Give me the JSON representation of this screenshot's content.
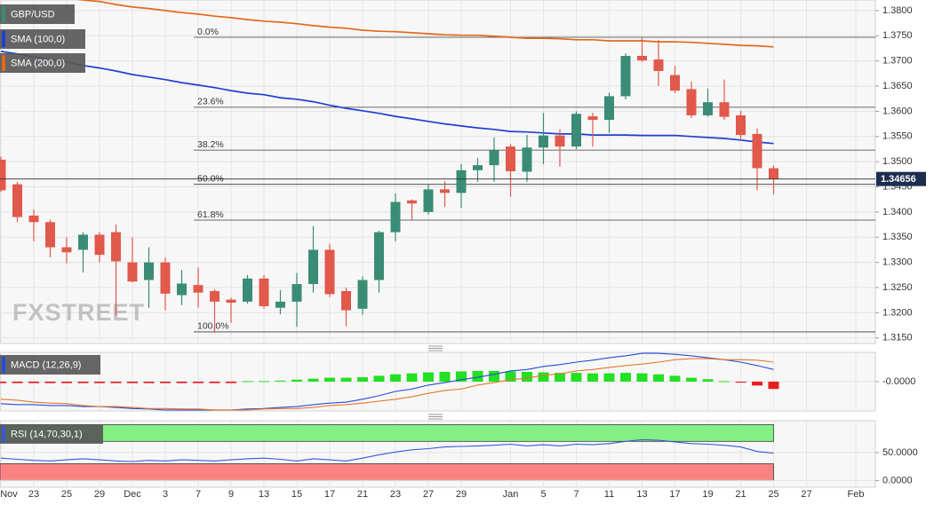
{
  "chart_data": [
    {
      "type": "candlestick",
      "watermark": "FXSTREET",
      "categories": [
        "Nov",
        null,
        "23",
        null,
        "25",
        null,
        "29",
        null,
        "Dec",
        null,
        "3",
        null,
        "7",
        null,
        "9",
        null,
        "13",
        null,
        "15",
        null,
        "17",
        null,
        "21",
        null,
        "23",
        null,
        "27",
        null,
        "29",
        null,
        null,
        "Jan",
        null,
        "5",
        null,
        "7",
        null,
        "11",
        null,
        "13",
        null,
        "17",
        null,
        "19",
        null,
        "21",
        null,
        "25",
        null,
        "27",
        null,
        null,
        "Feb"
      ],
      "candles": {
        "name": "GBP/USD",
        "up_color": "#3b8c76",
        "down_color": "#e0594b",
        "open": [
          1.3504,
          1.3455,
          1.3393,
          1.338,
          1.333,
          1.3325,
          1.3355,
          1.336,
          1.33,
          1.3265,
          1.33,
          1.3235,
          1.3255,
          1.3243,
          1.3226,
          1.3222,
          1.3268,
          1.321,
          1.3222,
          1.3257,
          1.3325,
          1.3243,
          1.3208,
          1.3265,
          1.336,
          1.3423,
          1.34,
          1.3445,
          1.3438,
          1.3483,
          1.3493,
          1.353,
          1.348,
          1.3528,
          1.3552,
          1.353,
          1.359,
          1.3583,
          1.363,
          1.371,
          1.3703,
          1.3672,
          1.3644,
          1.3592,
          1.3618,
          1.3592,
          1.3555,
          1.3487,
          null,
          null,
          null,
          null,
          null
        ],
        "high": [
          1.351,
          1.346,
          1.3405,
          1.3385,
          1.335,
          1.336,
          1.336,
          1.3375,
          1.335,
          1.333,
          1.331,
          1.3285,
          1.329,
          1.3247,
          1.323,
          1.3275,
          1.3275,
          1.3245,
          1.3279,
          1.3372,
          1.3337,
          1.325,
          1.3272,
          1.3363,
          1.3437,
          1.3425,
          1.3455,
          1.3461,
          1.3496,
          1.3507,
          1.3548,
          1.3535,
          1.3553,
          1.3597,
          1.3564,
          1.36,
          1.3597,
          1.3637,
          1.3715,
          1.3746,
          1.3742,
          1.369,
          1.3659,
          1.3645,
          1.3663,
          1.3601,
          1.3566,
          1.3492,
          null,
          null,
          null,
          null,
          null
        ],
        "low": [
          1.344,
          1.338,
          1.3342,
          1.331,
          1.3298,
          1.328,
          1.33,
          1.3195,
          1.326,
          1.321,
          1.3205,
          1.3215,
          1.321,
          1.316,
          1.318,
          1.3218,
          1.3208,
          1.3197,
          1.3172,
          1.324,
          1.3231,
          1.3173,
          1.3196,
          1.324,
          1.3342,
          1.3385,
          1.3395,
          1.341,
          1.3408,
          1.346,
          1.346,
          1.343,
          1.346,
          1.3495,
          1.349,
          1.3525,
          1.353,
          1.3557,
          1.3624,
          1.3698,
          1.365,
          1.3636,
          1.3587,
          1.3589,
          1.3583,
          1.3543,
          1.3443,
          1.3435,
          null,
          null,
          null,
          null,
          null
        ],
        "close": [
          1.3443,
          1.339,
          1.338,
          1.333,
          1.332,
          1.3355,
          1.3315,
          1.3302,
          1.3262,
          1.33,
          1.3238,
          1.3258,
          1.324,
          1.3222,
          1.322,
          1.3268,
          1.3213,
          1.3222,
          1.3257,
          1.3325,
          1.3237,
          1.3205,
          1.3265,
          1.336,
          1.342,
          1.3417,
          1.3445,
          1.3438,
          1.3483,
          1.3493,
          1.3522,
          1.3481,
          1.3528,
          1.3552,
          1.353,
          1.3595,
          1.3583,
          1.363,
          1.371,
          1.3701,
          1.368,
          1.3641,
          1.3592,
          1.3618,
          1.3589,
          1.3553,
          1.3487,
          1.34656,
          null,
          null,
          null,
          null,
          null
        ]
      },
      "series": [
        {
          "name": "SMA (100,0)",
          "color": "#1f3fd2",
          "values": [
            1.3719,
            1.3714,
            1.3708,
            1.3703,
            1.3698,
            1.3691,
            1.3686,
            1.368,
            1.3673,
            1.3668,
            1.3663,
            1.3657,
            1.3652,
            1.3647,
            1.3641,
            1.3636,
            1.3633,
            1.3627,
            1.3624,
            1.3619,
            1.3612,
            1.3606,
            1.3601,
            1.3596,
            1.359,
            1.3585,
            1.358,
            1.3575,
            1.3571,
            1.3567,
            1.3564,
            1.356,
            1.3559,
            1.3557,
            1.3555,
            1.3555,
            1.3553,
            1.3553,
            1.3553,
            1.3552,
            1.3552,
            1.3552,
            1.355,
            1.3548,
            1.3546,
            1.3543,
            1.3539,
            1.3536,
            null,
            null,
            null,
            null,
            null
          ]
        },
        {
          "name": "SMA (200,0)",
          "color": "#e2691d",
          "values": [
            1.3839,
            1.3835,
            1.3832,
            1.3828,
            1.3825,
            1.3821,
            1.3818,
            1.3812,
            1.3807,
            1.3804,
            1.38,
            1.3796,
            1.3793,
            1.3789,
            1.3786,
            1.3782,
            1.3779,
            1.3777,
            1.3774,
            1.377,
            1.3767,
            1.3765,
            1.3761,
            1.3759,
            1.3758,
            1.3756,
            1.3754,
            1.3752,
            1.3751,
            1.3751,
            1.3749,
            1.3747,
            1.3745,
            1.3745,
            1.3744,
            1.3742,
            1.3742,
            1.374,
            1.374,
            1.374,
            1.3738,
            1.3738,
            1.3737,
            1.3735,
            1.3733,
            1.3731,
            1.373,
            1.3728,
            null,
            null,
            null,
            null,
            null
          ]
        }
      ],
      "fibonacci": [
        {
          "label": "0.0%",
          "value": 1.3747
        },
        {
          "label": "23.6%",
          "value": 1.3608
        },
        {
          "label": "38.2%",
          "value": 1.3523
        },
        {
          "label": "50.0%",
          "value": 1.3455
        },
        {
          "label": "61.8%",
          "value": 1.3384
        },
        {
          "label": "100.0%",
          "value": 1.3162
        }
      ],
      "ylim": [
        1.3139,
        1.3821
      ],
      "yticks": [
        {
          "value": 1.315,
          "label": "1.3150"
        },
        {
          "value": 1.32,
          "label": "1.3200"
        },
        {
          "value": 1.325,
          "label": "1.3250"
        },
        {
          "value": 1.33,
          "label": "1.3300"
        },
        {
          "value": 1.335,
          "label": "1.3350"
        },
        {
          "value": 1.34,
          "label": "1.3400"
        },
        {
          "value": 1.345,
          "label": "1.3450"
        },
        {
          "value": 1.35,
          "label": "1.3500"
        },
        {
          "value": 1.355,
          "label": "1.3550"
        },
        {
          "value": 1.36,
          "label": "1.3600"
        },
        {
          "value": 1.365,
          "label": "1.3650"
        },
        {
          "value": 1.37,
          "label": "1.3700"
        },
        {
          "value": 1.375,
          "label": "1.3750"
        },
        {
          "value": 1.38,
          "label": "1.3800"
        }
      ],
      "grid": true
    },
    {
      "type": "macd",
      "title": "MACD (12,26,9)",
      "histogram": {
        "up_color": "#22e022",
        "down_color": "#e81c1c",
        "values": [
          -0.0003,
          -0.0003,
          -0.0003,
          -0.0003,
          -0.0003,
          -0.0003,
          -0.0003,
          -0.0003,
          -0.0003,
          -0.0003,
          -0.0003,
          -0.0003,
          -0.0003,
          -0.0003,
          -0.0003,
          0.0001,
          0.0001,
          0.0002,
          0.0004,
          0.0006,
          0.0008,
          0.0008,
          0.0009,
          0.0012,
          0.0015,
          0.0017,
          0.0019,
          0.002,
          0.0021,
          0.0022,
          0.0022,
          0.0021,
          0.002,
          0.0019,
          0.0018,
          0.0018,
          0.0017,
          0.0017,
          0.0018,
          0.0017,
          0.0015,
          0.0012,
          0.0008,
          0.0005,
          0.0001,
          -0.0002,
          -0.0008,
          -0.0015,
          null,
          null,
          null,
          null,
          null
        ]
      },
      "series": [
        {
          "color": "#2a4bd7",
          "values": [
            -0.0045,
            -0.0047,
            -0.0047,
            -0.0049,
            -0.0049,
            -0.0051,
            -0.0051,
            -0.0053,
            -0.0055,
            -0.0056,
            -0.0058,
            -0.0058,
            -0.0058,
            -0.0058,
            -0.0058,
            -0.0056,
            -0.0055,
            -0.0053,
            -0.0051,
            -0.0047,
            -0.0044,
            -0.0042,
            -0.0036,
            -0.0029,
            -0.002,
            -0.0015,
            -0.0007,
            -0.0002,
            0.0004,
            0.0009,
            0.0015,
            0.0022,
            0.0025,
            0.0031,
            0.0035,
            0.004,
            0.0044,
            0.0049,
            0.0053,
            0.0058,
            0.0058,
            0.0056,
            0.0053,
            0.0049,
            0.0045,
            0.004,
            0.0033,
            0.0025,
            null,
            null,
            null,
            null,
            null
          ]
        },
        {
          "color": "#e8762b",
          "values": [
            -0.0036,
            -0.0038,
            -0.0042,
            -0.0044,
            -0.0045,
            -0.0049,
            -0.0051,
            -0.0051,
            -0.0053,
            -0.0055,
            -0.0055,
            -0.0056,
            -0.0056,
            -0.0058,
            -0.0058,
            -0.0058,
            -0.0056,
            -0.0055,
            -0.0055,
            -0.0053,
            -0.0049,
            -0.0047,
            -0.0044,
            -0.004,
            -0.0036,
            -0.0031,
            -0.0024,
            -0.0018,
            -0.0015,
            -0.0007,
            -0.0002,
            0.0004,
            0.0007,
            0.0013,
            0.0016,
            0.0022,
            0.0025,
            0.0029,
            0.0033,
            0.0036,
            0.004,
            0.0045,
            0.0047,
            0.0047,
            0.0045,
            0.0045,
            0.0044,
            0.004,
            null,
            null,
            null,
            null,
            null
          ]
        }
      ],
      "ylim": [
        -0.006,
        0.006
      ],
      "yticks": [
        {
          "value": 0,
          "label": "-0.0000"
        }
      ],
      "grid": true
    },
    {
      "type": "rsi",
      "title": "RSI (14,70,30,1)",
      "color": "#3a57d6",
      "values": [
        40,
        38,
        36,
        35,
        37,
        39,
        37,
        35,
        34,
        36,
        35,
        37,
        36,
        35,
        37,
        39,
        40,
        38,
        35,
        39,
        37,
        35,
        40,
        46,
        51,
        55,
        57,
        60,
        61,
        62,
        63,
        65,
        62,
        64,
        62,
        65,
        64,
        66,
        70,
        73,
        72,
        69,
        66,
        65,
        63,
        60,
        52,
        49,
        null,
        null,
        null,
        null,
        null
      ],
      "bands": [
        {
          "range": [
            70,
            100
          ],
          "color": "#84ef84"
        },
        {
          "range": [
            0,
            30
          ],
          "color": "#f98383"
        }
      ],
      "ylim": [
        -12,
        107
      ],
      "yticks": [
        {
          "value": 50,
          "label": "50.0000"
        },
        {
          "value": 0,
          "label": "0.0000"
        }
      ],
      "grid": true
    }
  ]
}
